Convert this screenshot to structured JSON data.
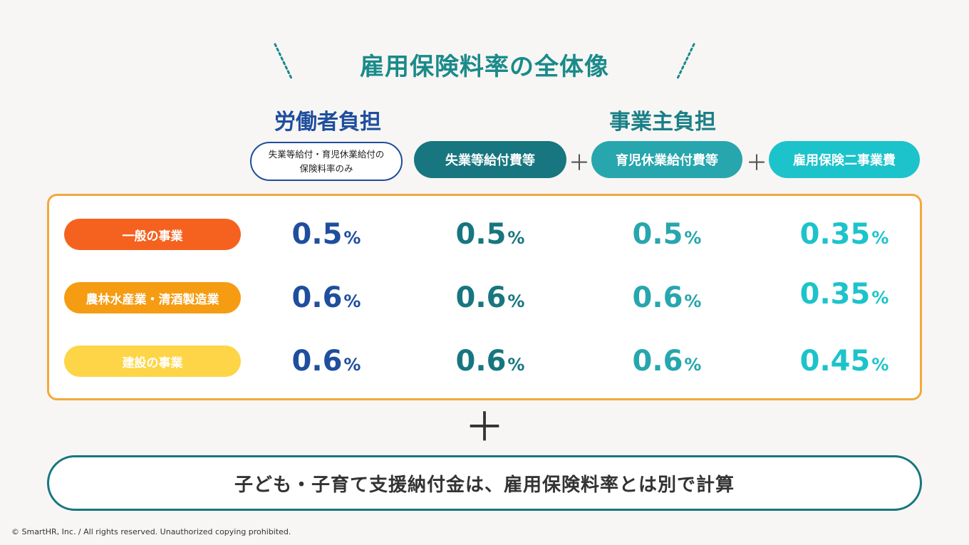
{
  "title": "雇用保険料率の全体像",
  "worker_label": "労働者負担",
  "employer_label": "事業主負担",
  "note_pill": {
    "line1": "失業等給付・育児休業給付の",
    "line2": "保険料率のみ"
  },
  "headers": [
    "失業等給付費等",
    "育児休業給付費等",
    "雇用保険二事業費"
  ],
  "plus_symbol": "＋",
  "rows": [
    {
      "label": "一般の事業",
      "values": [
        "0.5",
        "0.5",
        "0.5",
        "0.35"
      ]
    },
    {
      "label": "農林水産業・清酒製造業",
      "values": [
        "0.6",
        "0.6",
        "0.6",
        "0.35"
      ]
    },
    {
      "label": "建設の事業",
      "values": [
        "0.6",
        "0.6",
        "0.6",
        "0.45"
      ]
    }
  ],
  "unit": "%",
  "big_plus": "＋",
  "bottom_note": "子ども・子育て支援納付金は、雇用保険料率とは別で計算",
  "copyright": "© SmartHR, Inc. / All rights reserved. Unauthorized copying prohibited.",
  "colors": {
    "worker": "#1f4e9e",
    "employer_dark": "#17767f",
    "employer_mid": "#27a6ad",
    "employer_light": "#1dc3cb",
    "row1": "#f5621f",
    "row2": "#f59c12",
    "row3": "#fdd547",
    "frame": "#f2a93b"
  }
}
